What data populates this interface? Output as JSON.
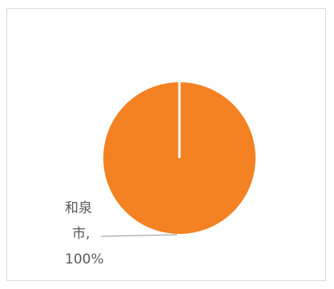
{
  "chart_data": {
    "type": "pie",
    "title": "",
    "slices": [
      {
        "label_lines": [
          "和泉",
          "市,",
          "100%"
        ],
        "category": "和泉市",
        "value": 100,
        "percent": "100%",
        "color": "#F48122"
      }
    ],
    "legend": "none",
    "separator_color": "#FFFFFF",
    "leader_line_color": "#A6A6A6",
    "frame_border_color": "#D9D9D9"
  }
}
